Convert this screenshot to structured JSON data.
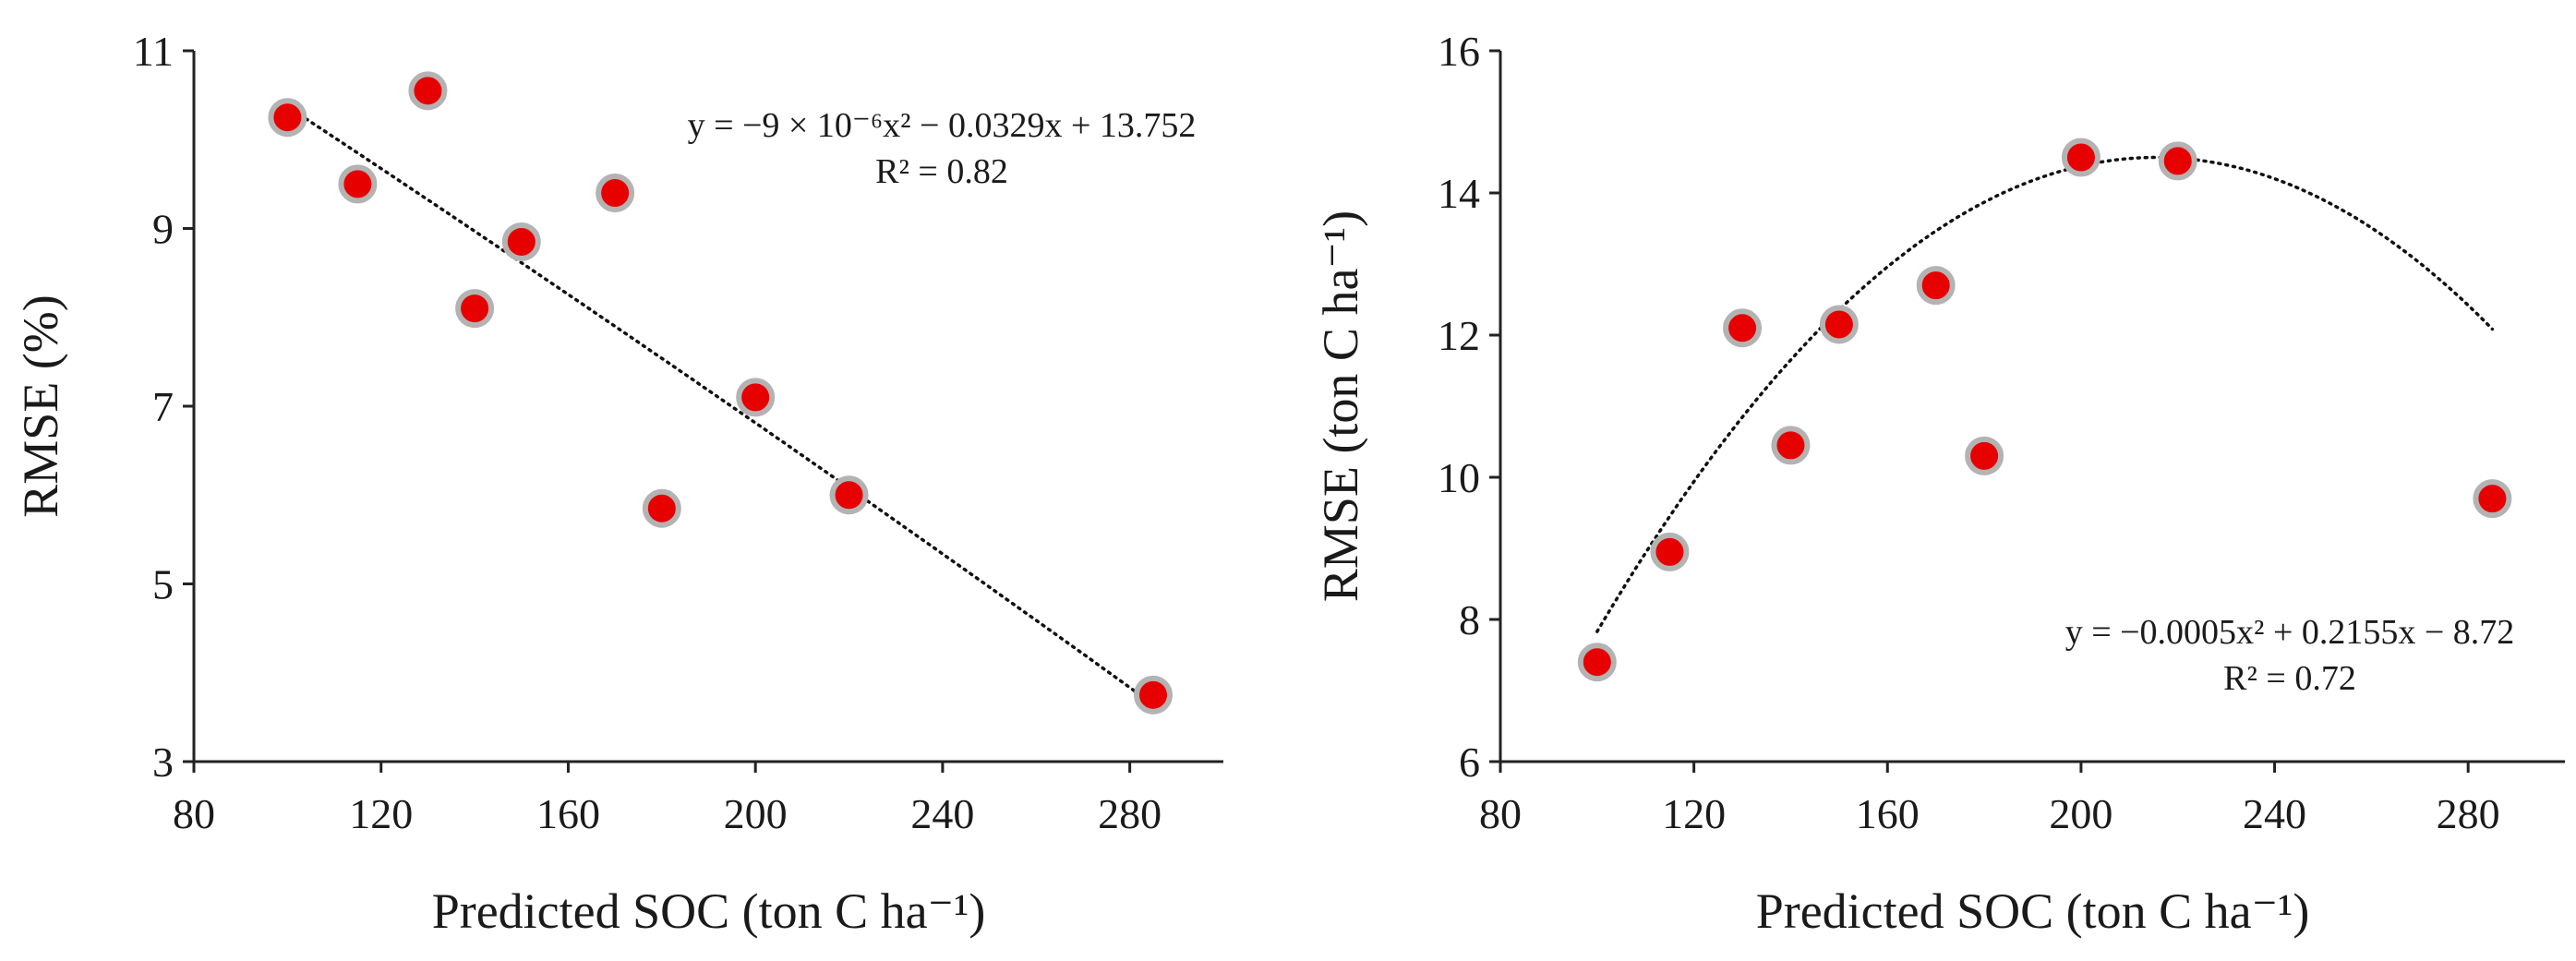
{
  "chart_data": [
    {
      "type": "scatter",
      "title": "",
      "xlabel": "Predicted SOC (ton C ha⁻¹)",
      "ylabel": "RMSE (%)",
      "xlim": [
        80,
        300
      ],
      "ylim": [
        3,
        11
      ],
      "xticks": [
        80,
        120,
        160,
        200,
        240,
        280
      ],
      "yticks": [
        3,
        5,
        7,
        9,
        11
      ],
      "grid": false,
      "marker_color": "#e60000",
      "marker_edge_color": "#b3b3b3",
      "series": [
        {
          "name": "RMSE",
          "x": [
            100,
            115,
            130,
            140,
            150,
            170,
            180,
            200,
            220,
            285
          ],
          "y": [
            10.25,
            9.5,
            10.55,
            8.1,
            8.85,
            9.4,
            5.85,
            7.1,
            6.0,
            3.75
          ]
        }
      ],
      "trendline": {
        "type": "polynomial",
        "a": -9e-06,
        "b": -0.0329,
        "c": 13.752,
        "x_range": [
          100,
          285
        ]
      },
      "equation": "y = −9 × 10⁻⁶x² − 0.0329x + 13.752",
      "r_squared": "R² = 0.82"
    },
    {
      "type": "scatter",
      "title": "",
      "xlabel": "Predicted SOC (ton C ha⁻¹)",
      "ylabel": "RMSE (ton C ha⁻¹)",
      "xlim": [
        80,
        300
      ],
      "ylim": [
        6,
        16
      ],
      "xticks": [
        80,
        120,
        160,
        200,
        240,
        280
      ],
      "yticks": [
        6,
        8,
        10,
        12,
        14,
        16
      ],
      "grid": false,
      "marker_color": "#e60000",
      "marker_edge_color": "#b3b3b3",
      "series": [
        {
          "name": "RMSE",
          "x": [
            100,
            115,
            130,
            140,
            150,
            170,
            180,
            200,
            220,
            285
          ],
          "y": [
            7.4,
            8.95,
            12.1,
            10.45,
            12.15,
            12.7,
            10.3,
            14.5,
            14.45,
            9.7
          ]
        }
      ],
      "trendline": {
        "type": "polynomial",
        "a": -0.0005,
        "b": 0.2155,
        "c": -8.72,
        "x_range": [
          100,
          285
        ]
      },
      "equation": "y = −0.0005x² + 0.2155x − 8.72",
      "r_squared": "R² = 0.72"
    }
  ]
}
